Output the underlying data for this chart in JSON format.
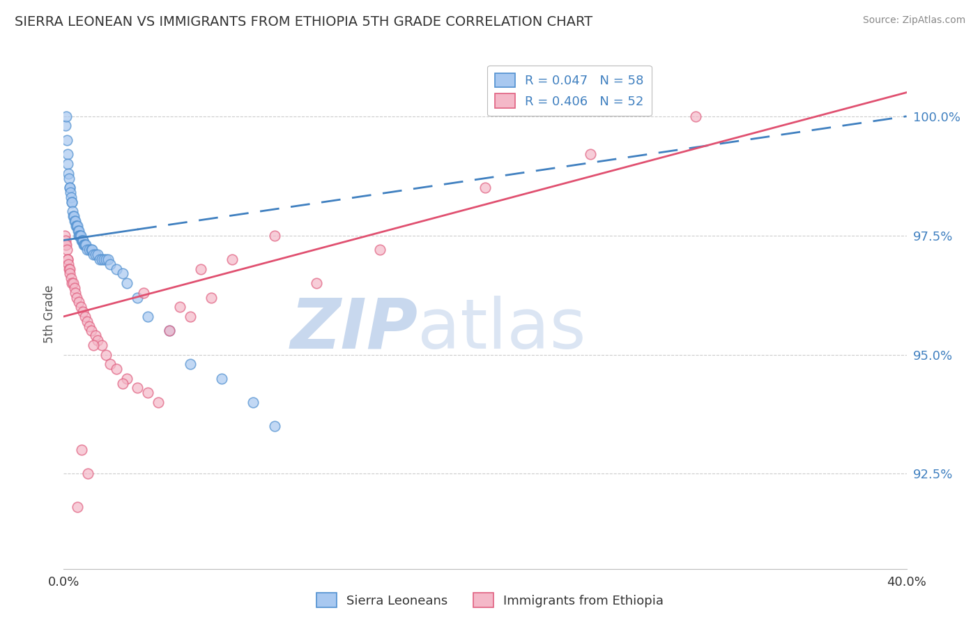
{
  "title": "SIERRA LEONEAN VS IMMIGRANTS FROM ETHIOPIA 5TH GRADE CORRELATION CHART",
  "source": "Source: ZipAtlas.com",
  "ylabel": "5th Grade",
  "legend_blue_label": "R = 0.047   N = 58",
  "legend_pink_label": "R = 0.406   N = 52",
  "legend_bottom_blue": "Sierra Leoneans",
  "legend_bottom_pink": "Immigrants from Ethiopia",
  "blue_fill_color": "#A8C8F0",
  "pink_fill_color": "#F4B8C8",
  "blue_edge_color": "#5090D0",
  "pink_edge_color": "#E06080",
  "blue_line_color": "#4080C0",
  "pink_line_color": "#E05070",
  "background_color": "#FFFFFF",
  "xmin": 0.0,
  "xmax": 40.0,
  "ymin": 90.5,
  "ymax": 101.2,
  "yticks": [
    92.5,
    95.0,
    97.5,
    100.0
  ],
  "blue_trend_x0": 0.0,
  "blue_trend_y0": 97.4,
  "blue_trend_x1": 40.0,
  "blue_trend_y1": 100.0,
  "pink_trend_x0": 0.0,
  "pink_trend_y0": 95.8,
  "pink_trend_x1": 40.0,
  "pink_trend_y1": 100.5,
  "blue_solid_end_x": 3.5,
  "blue_scatter_x": [
    0.08,
    0.12,
    0.15,
    0.18,
    0.2,
    0.22,
    0.25,
    0.28,
    0.3,
    0.32,
    0.35,
    0.38,
    0.4,
    0.42,
    0.45,
    0.48,
    0.5,
    0.55,
    0.58,
    0.6,
    0.65,
    0.68,
    0.7,
    0.72,
    0.75,
    0.78,
    0.8,
    0.85,
    0.88,
    0.9,
    0.92,
    0.95,
    0.98,
    1.0,
    1.05,
    1.1,
    1.2,
    1.3,
    1.35,
    1.4,
    1.5,
    1.6,
    1.7,
    1.8,
    1.9,
    2.0,
    2.1,
    2.2,
    2.5,
    2.8,
    3.0,
    3.5,
    4.0,
    5.0,
    6.0,
    7.5,
    9.0,
    10.0
  ],
  "blue_scatter_y": [
    99.8,
    100.0,
    99.5,
    99.2,
    99.0,
    98.8,
    98.7,
    98.5,
    98.5,
    98.4,
    98.3,
    98.2,
    98.2,
    98.0,
    97.9,
    97.9,
    97.8,
    97.8,
    97.7,
    97.7,
    97.7,
    97.6,
    97.6,
    97.5,
    97.5,
    97.5,
    97.5,
    97.4,
    97.4,
    97.4,
    97.4,
    97.3,
    97.3,
    97.3,
    97.3,
    97.2,
    97.2,
    97.2,
    97.2,
    97.1,
    97.1,
    97.1,
    97.0,
    97.0,
    97.0,
    97.0,
    97.0,
    96.9,
    96.8,
    96.7,
    96.5,
    96.2,
    95.8,
    95.5,
    94.8,
    94.5,
    94.0,
    93.5
  ],
  "pink_scatter_x": [
    0.05,
    0.08,
    0.1,
    0.12,
    0.15,
    0.18,
    0.2,
    0.22,
    0.25,
    0.28,
    0.3,
    0.35,
    0.4,
    0.45,
    0.5,
    0.55,
    0.6,
    0.7,
    0.8,
    0.9,
    1.0,
    1.1,
    1.2,
    1.3,
    1.5,
    1.6,
    1.8,
    2.0,
    2.2,
    2.5,
    3.0,
    3.5,
    4.0,
    4.5,
    5.0,
    6.0,
    7.0,
    8.0,
    10.0,
    12.0,
    15.0,
    20.0,
    25.0,
    30.0,
    1.4,
    2.8,
    3.8,
    5.5,
    6.5,
    0.85,
    1.15,
    0.65
  ],
  "pink_scatter_y": [
    97.5,
    97.4,
    97.3,
    97.3,
    97.2,
    97.0,
    97.0,
    96.9,
    96.8,
    96.8,
    96.7,
    96.6,
    96.5,
    96.5,
    96.4,
    96.3,
    96.2,
    96.1,
    96.0,
    95.9,
    95.8,
    95.7,
    95.6,
    95.5,
    95.4,
    95.3,
    95.2,
    95.0,
    94.8,
    94.7,
    94.5,
    94.3,
    94.2,
    94.0,
    95.5,
    95.8,
    96.2,
    97.0,
    97.5,
    96.5,
    97.2,
    98.5,
    99.2,
    100.0,
    95.2,
    94.4,
    96.3,
    96.0,
    96.8,
    93.0,
    92.5,
    91.8
  ]
}
